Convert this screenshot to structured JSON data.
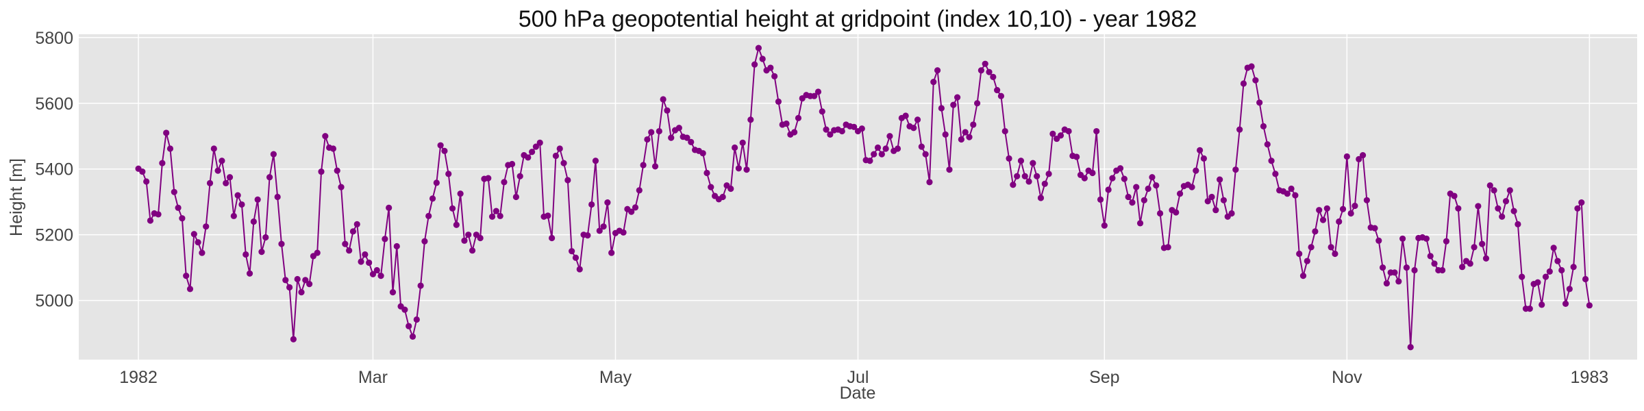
{
  "chart_data": {
    "type": "line",
    "title": "500 hPa geopotential height at gridpoint (index 10,10) - year 1982",
    "xlabel": "Date",
    "ylabel": "Height [m]",
    "xlim": [
      "1981-12-17",
      "1983-01-13"
    ],
    "ylim": [
      4820,
      5810
    ],
    "grid": true,
    "legend": "none",
    "colors": {
      "series": "#800080",
      "background": "#e5e5e5",
      "grid": "#ffffff"
    },
    "x_ticks": [
      {
        "date": "1982-01-01",
        "label": "1982"
      },
      {
        "date": "1982-03-01",
        "label": "Mar"
      },
      {
        "date": "1982-05-01",
        "label": "May"
      },
      {
        "date": "1982-07-01",
        "label": "Jul"
      },
      {
        "date": "1982-09-01",
        "label": "Sep"
      },
      {
        "date": "1982-11-01",
        "label": "Nov"
      },
      {
        "date": "1983-01-01",
        "label": "1983"
      }
    ],
    "y_ticks": [
      5000,
      5200,
      5400,
      5600,
      5800
    ],
    "series": [
      {
        "start_date": "1982-01-01",
        "interval": "daily",
        "values": [
          5401,
          5392,
          5362,
          5243,
          5265,
          5262,
          5418,
          5510,
          5462,
          5330,
          5282,
          5250,
          5075,
          5035,
          5202,
          5177,
          5145,
          5225,
          5357,
          5462,
          5395,
          5425,
          5357,
          5375,
          5257,
          5320,
          5292,
          5140,
          5082,
          5240,
          5307,
          5148,
          5192,
          5375,
          5445,
          5315,
          5172,
          5062,
          5040,
          4882,
          5065,
          5025,
          5062,
          5050,
          5135,
          5145,
          5392,
          5500,
          5465,
          5462,
          5395,
          5345,
          5172,
          5152,
          5210,
          5232,
          5118,
          5140,
          5115,
          5080,
          5092,
          5075,
          5187,
          5282,
          5025,
          5165,
          4982,
          4972,
          4922,
          4890,
          4942,
          5045,
          5180,
          5257,
          5310,
          5358,
          5472,
          5455,
          5385,
          5280,
          5230,
          5325,
          5182,
          5200,
          5152,
          5200,
          5190,
          5370,
          5372,
          5255,
          5272,
          5257,
          5360,
          5412,
          5415,
          5315,
          5378,
          5442,
          5435,
          5452,
          5468,
          5480,
          5255,
          5258,
          5190,
          5440,
          5462,
          5418,
          5366,
          5150,
          5130,
          5095,
          5200,
          5198,
          5292,
          5425,
          5212,
          5225,
          5298,
          5145,
          5205,
          5212,
          5207,
          5278,
          5270,
          5283,
          5335,
          5412,
          5490,
          5512,
          5408,
          5515,
          5612,
          5578,
          5495,
          5518,
          5525,
          5498,
          5495,
          5482,
          5458,
          5455,
          5448,
          5388,
          5345,
          5318,
          5308,
          5315,
          5350,
          5340,
          5465,
          5402,
          5480,
          5398,
          5550,
          5718,
          5768,
          5735,
          5700,
          5708,
          5682,
          5605,
          5535,
          5538,
          5505,
          5512,
          5555,
          5615,
          5625,
          5622,
          5622,
          5635,
          5575,
          5520,
          5505,
          5518,
          5520,
          5515,
          5535,
          5530,
          5528,
          5515,
          5523,
          5427,
          5425,
          5445,
          5465,
          5445,
          5462,
          5500,
          5455,
          5462,
          5555,
          5562,
          5530,
          5525,
          5550,
          5468,
          5445,
          5360,
          5665,
          5700,
          5585,
          5505,
          5398,
          5595,
          5618,
          5490,
          5512,
          5497,
          5535,
          5600,
          5700,
          5720,
          5695,
          5680,
          5640,
          5622,
          5515,
          5432,
          5352,
          5378,
          5425,
          5378,
          5362,
          5418,
          5378,
          5312,
          5355,
          5385,
          5507,
          5492,
          5502,
          5520,
          5515,
          5440,
          5437,
          5382,
          5372,
          5395,
          5388,
          5515,
          5307,
          5228,
          5337,
          5372,
          5395,
          5402,
          5370,
          5315,
          5298,
          5345,
          5235,
          5305,
          5340,
          5375,
          5350,
          5265,
          5160,
          5162,
          5275,
          5268,
          5325,
          5348,
          5352,
          5345,
          5395,
          5457,
          5432,
          5302,
          5315,
          5275,
          5368,
          5305,
          5255,
          5265,
          5398,
          5520,
          5660,
          5708,
          5712,
          5670,
          5602,
          5530,
          5475,
          5425,
          5385,
          5335,
          5332,
          5325,
          5340,
          5320,
          5142,
          5075,
          5120,
          5162,
          5210,
          5275,
          5245,
          5280,
          5162,
          5142,
          5240,
          5278,
          5438,
          5265,
          5288,
          5430,
          5442,
          5305,
          5222,
          5220,
          5182,
          5100,
          5052,
          5085,
          5085,
          5058,
          5188,
          5100,
          4858,
          5092,
          5190,
          5192,
          5188,
          5135,
          5112,
          5092,
          5092,
          5180,
          5325,
          5318,
          5280,
          5102,
          5120,
          5112,
          5162,
          5287,
          5172,
          5128,
          5350,
          5335,
          5280,
          5255,
          5302,
          5335,
          5272,
          5232,
          5072,
          4975,
          4975,
          5050,
          5055,
          4987,
          5072,
          5088,
          5160,
          5120,
          5092,
          4990,
          5035,
          5102,
          5280,
          5298,
          5065,
          4985
        ]
      }
    ]
  }
}
